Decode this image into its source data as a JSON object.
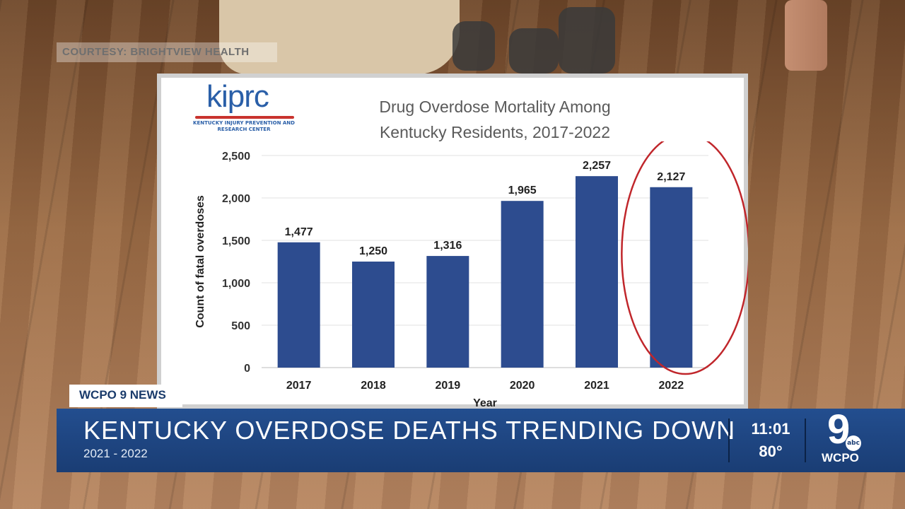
{
  "courtesy": "COURTESY: BRIGHTVIEW HEALTH",
  "logo": {
    "main": "kiprc",
    "sub": "KENTUCKY INJURY PREVENTION AND RESEARCH CENTER"
  },
  "chart_title_line1": "Drug Overdose Mortality Among",
  "chart_title_line2": "Kentucky Residents, 2017-2022",
  "chart_data": {
    "type": "bar",
    "title": "Drug Overdose Mortality Among Kentucky Residents, 2017-2022",
    "xlabel": "Year",
    "ylabel": "Count of fatal overdoses",
    "categories": [
      "2017",
      "2018",
      "2019",
      "2020",
      "2021",
      "2022"
    ],
    "values": [
      1477,
      1250,
      1316,
      1965,
      2257,
      2127
    ],
    "value_labels": [
      "1,477",
      "1,250",
      "1,316",
      "1,965",
      "2,257",
      "2,127"
    ],
    "yticks": [
      0,
      500,
      1000,
      1500,
      2000,
      2500
    ],
    "ytick_labels": [
      "0",
      "500",
      "1,000",
      "1,500",
      "2,000",
      "2,500"
    ],
    "ylim": [
      0,
      2500
    ],
    "bar_color": "#2d4c8f",
    "highlight": {
      "category": "2022",
      "style": "red ellipse",
      "color": "#c0262b"
    },
    "grid": true,
    "legend": "none"
  },
  "lower_third": {
    "tag": "WCPO 9 NEWS",
    "headline": "KENTUCKY OVERDOSE DEATHS TRENDING DOWN",
    "subline": "2021 - 2022",
    "time": "11:01",
    "temperature": "80°",
    "station_number": "9",
    "network": "abc",
    "station": "WCPO"
  },
  "colors": {
    "banner": "#1f4682",
    "text": "#ffffff"
  }
}
